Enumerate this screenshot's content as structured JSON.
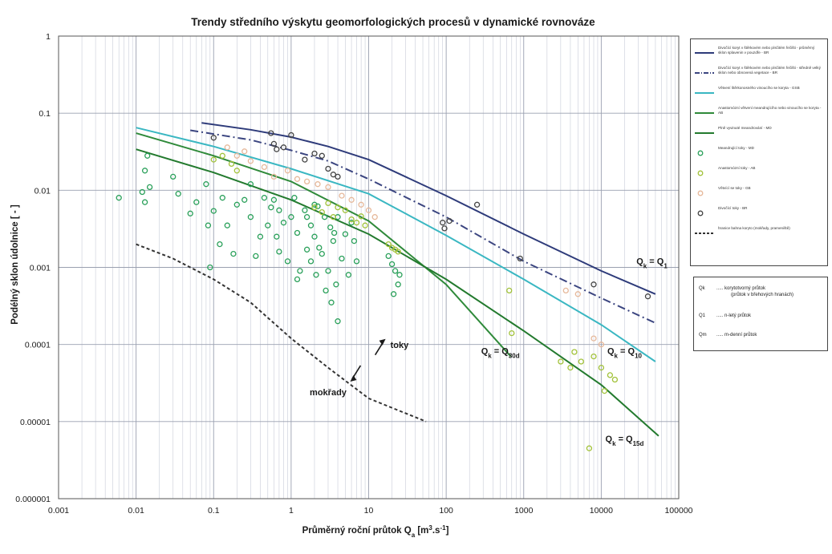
{
  "chart_data": {
    "type": "scatter",
    "title": "Trendy středního výskytu geomorfologických procesů v dynamické rovnováze",
    "xlabel": "Průměrný roční průtok Qa [m3.s-1]",
    "ylabel": "Podélný sklon údolnice [ - ]",
    "x_scale": "log",
    "y_scale": "log",
    "xlim": [
      0.001,
      100000
    ],
    "ylim": [
      1e-06,
      1
    ],
    "x_ticks": [
      "0.001",
      "0.01",
      "0.1",
      "1",
      "10",
      "100",
      "1000",
      "10000",
      "100000"
    ],
    "y_ticks": [
      "1",
      "0.1",
      "0.01",
      "0.001",
      "0.0001",
      "0.00001",
      "0.000001"
    ],
    "grid": true,
    "legend_position": "right",
    "lines": [
      {
        "name": "Divočící koryt v štěrkovém nebo písčitém řečišti - průměrný sklon splavenin v pouzdře - BR",
        "color": "#2e3b7a",
        "dash": "solid",
        "label": "Qk = Q1",
        "x": [
          0.07,
          0.3,
          1,
          3,
          10,
          100,
          1000,
          10000,
          50000
        ],
        "y": [
          0.075,
          0.061,
          0.049,
          0.037,
          0.025,
          0.0085,
          0.0027,
          0.0009,
          0.00045
        ]
      },
      {
        "name": "Divočící koryt v štěrkovém nebo písčitém řečišti - středně velký sklon nebo obnovená vegetace - BR",
        "color": "#3b4580",
        "dash": "dashdot",
        "label": "",
        "x": [
          0.05,
          0.3,
          1,
          3,
          10,
          100,
          1000,
          10000,
          50000
        ],
        "y": [
          0.06,
          0.045,
          0.033,
          0.024,
          0.014,
          0.0045,
          0.0012,
          0.0004,
          0.00019
        ]
      },
      {
        "name": "Větvení štěrkonosného vinoucího se koryta - GSB",
        "color": "#3ab7c2",
        "dash": "solid",
        "label": "Qk = Q10",
        "x": [
          0.01,
          0.1,
          1,
          10,
          100,
          1000,
          10000,
          50000
        ],
        "y": [
          0.065,
          0.037,
          0.019,
          0.009,
          0.0026,
          0.0007,
          0.00018,
          6e-05
        ]
      },
      {
        "name": "Anastomózní větvení meandrujícího nebo vinoucího se koryta - AB",
        "color": "#2f8a3a",
        "dash": "solid",
        "label": "Qk = Q30d",
        "x": [
          0.01,
          0.1,
          1,
          10,
          100,
          680
        ],
        "y": [
          0.055,
          0.028,
          0.013,
          0.004,
          0.0006,
          7e-05
        ]
      },
      {
        "name": "Plně vyvinuté meandrování - MD",
        "color": "#237a2e",
        "dash": "solid",
        "label": "Qk = Q15d",
        "x": [
          0.01,
          0.1,
          1,
          10,
          100,
          1000,
          10000,
          55000
        ],
        "y": [
          0.034,
          0.017,
          0.0075,
          0.0027,
          0.0007,
          0.00015,
          3e-05,
          6.5e-06
        ]
      },
      {
        "name": "hranice bahna koryto (mokřady, prameniště)",
        "color": "#333333",
        "dash": "dashed",
        "label": "",
        "x": [
          0.01,
          0.03,
          0.1,
          0.3,
          1,
          3,
          10,
          55
        ],
        "y": [
          0.002,
          0.0013,
          0.0007,
          0.00035,
          0.00012,
          5e-05,
          2e-05,
          1e-05
        ]
      }
    ],
    "series": [
      {
        "name": "Meandrující toky - MD",
        "color": "#2aa05a",
        "points": [
          [
            0.006,
            0.008
          ],
          [
            0.012,
            0.0095
          ],
          [
            0.013,
            0.018
          ],
          [
            0.014,
            0.028
          ],
          [
            0.015,
            0.011
          ],
          [
            0.013,
            0.007
          ],
          [
            0.03,
            0.015
          ],
          [
            0.035,
            0.009
          ],
          [
            0.05,
            0.005
          ],
          [
            0.06,
            0.007
          ],
          [
            0.08,
            0.012
          ],
          [
            0.085,
            0.0035
          ],
          [
            0.09,
            0.001
          ],
          [
            0.1,
            0.0054
          ],
          [
            0.12,
            0.002
          ],
          [
            0.13,
            0.008
          ],
          [
            0.15,
            0.0035
          ],
          [
            0.18,
            0.0015
          ],
          [
            0.2,
            0.0065
          ],
          [
            0.25,
            0.0075
          ],
          [
            0.3,
            0.012
          ],
          [
            0.3,
            0.0045
          ],
          [
            0.35,
            0.0014
          ],
          [
            0.4,
            0.0025
          ],
          [
            0.45,
            0.008
          ],
          [
            0.5,
            0.0035
          ],
          [
            0.55,
            0.006
          ],
          [
            0.6,
            0.0075
          ],
          [
            0.65,
            0.0025
          ],
          [
            0.7,
            0.0055
          ],
          [
            0.8,
            0.0038
          ],
          [
            0.9,
            0.0012
          ],
          [
            1.0,
            0.0045
          ],
          [
            1.1,
            0.008
          ],
          [
            1.2,
            0.0028
          ],
          [
            1.3,
            0.0009
          ],
          [
            1.5,
            0.0055
          ],
          [
            1.6,
            0.0017
          ],
          [
            1.8,
            0.0035
          ],
          [
            2.0,
            0.0025
          ],
          [
            2.2,
            0.0062
          ],
          [
            2.5,
            0.0015
          ],
          [
            2.7,
            0.0045
          ],
          [
            3.0,
            0.0009
          ],
          [
            3.2,
            0.0033
          ],
          [
            3.5,
            0.0022
          ],
          [
            3.8,
            0.0006
          ],
          [
            4.0,
            0.0045
          ],
          [
            4.5,
            0.0013
          ],
          [
            5.0,
            0.0027
          ],
          [
            5.5,
            0.0008
          ],
          [
            6.0,
            0.0038
          ],
          [
            0.7,
            0.0016
          ],
          [
            1.2,
            0.0007
          ],
          [
            2.8,
            0.0005
          ],
          [
            3.3,
            0.00035
          ],
          [
            4.0,
            0.0002
          ],
          [
            2.0,
            0.0065
          ],
          [
            1.8,
            0.0012
          ],
          [
            2.3,
            0.0018
          ],
          [
            6.5,
            0.0022
          ],
          [
            7.0,
            0.0012
          ],
          [
            3.6,
            0.0028
          ],
          [
            1.6,
            0.0045
          ],
          [
            2.1,
            0.0008
          ],
          [
            18.0,
            0.0014
          ],
          [
            20.0,
            0.0011
          ],
          [
            22.0,
            0.0009
          ],
          [
            25.0,
            0.0008
          ],
          [
            24.0,
            0.0006
          ],
          [
            21.0,
            0.00045
          ]
        ]
      },
      {
        "name": "Anastomózní toky - AB",
        "color": "#a2c23a",
        "points": [
          [
            0.1,
            0.025
          ],
          [
            0.13,
            0.028
          ],
          [
            0.17,
            0.022
          ],
          [
            0.2,
            0.018
          ],
          [
            2.0,
            0.006
          ],
          [
            2.5,
            0.0052
          ],
          [
            3.0,
            0.0068
          ],
          [
            3.5,
            0.0045
          ],
          [
            4.0,
            0.006
          ],
          [
            5.0,
            0.0055
          ],
          [
            6.0,
            0.0042
          ],
          [
            7.0,
            0.0038
          ],
          [
            8.0,
            0.0046
          ],
          [
            9.0,
            0.0035
          ],
          [
            18.0,
            0.002
          ],
          [
            20.0,
            0.0018
          ],
          [
            22.0,
            0.0017
          ],
          [
            24.0,
            0.0016
          ],
          [
            650.0,
            0.0005
          ],
          [
            700.0,
            0.00014
          ],
          [
            3000.0,
            6e-05
          ],
          [
            4000.0,
            5e-05
          ],
          [
            4500.0,
            8e-05
          ],
          [
            5500.0,
            6e-05
          ],
          [
            8000.0,
            7e-05
          ],
          [
            10000.0,
            5e-05
          ],
          [
            11000.0,
            2.5e-05
          ],
          [
            13000.0,
            4e-05
          ],
          [
            15000.0,
            3.5e-05
          ],
          [
            7000.0,
            4.5e-06
          ]
        ]
      },
      {
        "name": "Větvící se toky - GB",
        "color": "#e6b89a",
        "points": [
          [
            0.15,
            0.036
          ],
          [
            0.2,
            0.028
          ],
          [
            0.25,
            0.032
          ],
          [
            0.3,
            0.024
          ],
          [
            0.45,
            0.02
          ],
          [
            0.6,
            0.015
          ],
          [
            0.9,
            0.018
          ],
          [
            1.2,
            0.014
          ],
          [
            1.6,
            0.013
          ],
          [
            2.2,
            0.012
          ],
          [
            3.0,
            0.011
          ],
          [
            4.5,
            0.0085
          ],
          [
            6.0,
            0.0075
          ],
          [
            8.0,
            0.0065
          ],
          [
            10.0,
            0.0055
          ],
          [
            12.0,
            0.0045
          ],
          [
            3500.0,
            0.0005
          ],
          [
            5000.0,
            0.00045
          ],
          [
            8000.0,
            0.00012
          ],
          [
            10000.0,
            0.0001
          ]
        ]
      },
      {
        "name": "Divočící toky - BR",
        "color": "#444444",
        "points": [
          [
            0.1,
            0.048
          ],
          [
            0.55,
            0.055
          ],
          [
            0.6,
            0.04
          ],
          [
            0.65,
            0.034
          ],
          [
            0.8,
            0.036
          ],
          [
            1.0,
            0.052
          ],
          [
            1.5,
            0.025
          ],
          [
            2.0,
            0.03
          ],
          [
            2.5,
            0.028
          ],
          [
            3.0,
            0.019
          ],
          [
            3.5,
            0.016
          ],
          [
            4.0,
            0.015
          ],
          [
            90.0,
            0.0038
          ],
          [
            95.0,
            0.0032
          ],
          [
            110.0,
            0.004
          ],
          [
            250.0,
            0.0065
          ],
          [
            900.0,
            0.0013
          ],
          [
            8000.0,
            0.0006
          ],
          [
            40000.0,
            0.00042
          ]
        ]
      }
    ],
    "annotations": [
      {
        "text": "toky",
        "x": 25,
        "y": 9e-05
      },
      {
        "text": "mokřady",
        "x": 3,
        "y": 2.2e-05
      },
      {
        "text": "Qk = Q1",
        "x": 45000,
        "y": 0.0011
      },
      {
        "text": "Qk = Q10",
        "x": 20000,
        "y": 7.5e-05
      },
      {
        "text": "Qk = Q30d",
        "x": 500,
        "y": 7.5e-05
      },
      {
        "text": "Qk = Q15d",
        "x": 20000,
        "y": 5.5e-06
      }
    ]
  },
  "legend2": {
    "rows": [
      {
        "symbol": "Qk",
        "text": "..... korytotvorný průtok",
        "text2": "(průtok v břehových hranách)"
      },
      {
        "symbol": "Q1",
        "text": "..... n-letý průtok",
        "text2": ""
      },
      {
        "symbol": "Qm",
        "text": "..... m-denní průtok",
        "text2": ""
      }
    ]
  }
}
